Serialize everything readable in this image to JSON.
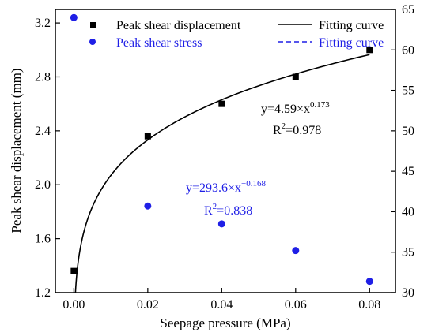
{
  "chart_data": {
    "type": "scatter",
    "xlabel": "Seepage pressure (MPa)",
    "ylabel_left": "Peak shear displacement (mm)",
    "ylabel_right": "",
    "x_ticks": [
      0.0,
      0.02,
      0.04,
      0.06,
      0.08
    ],
    "x_tick_labels": [
      "0.00",
      "0.02",
      "0.04",
      "0.06",
      "0.08"
    ],
    "xlim": [
      -0.005,
      0.087
    ],
    "y_left_ticks": [
      1.2,
      1.6,
      2.0,
      2.4,
      2.8,
      3.2
    ],
    "y_left_tick_labels": [
      "1.2",
      "1.6",
      "2.0",
      "2.4",
      "2.8",
      "3.2"
    ],
    "ylim_left": [
      1.2,
      3.3
    ],
    "y_right_ticks": [
      30,
      35,
      40,
      45,
      50,
      55,
      60,
      65
    ],
    "y_right_tick_labels": [
      "30",
      "35",
      "40",
      "45",
      "50",
      "55",
      "60",
      "65"
    ],
    "ylim_right": [
      30,
      65
    ],
    "series": [
      {
        "name": "Peak shear displacement",
        "axis": "left",
        "marker": "square",
        "color": "#000000",
        "x": [
          0.0,
          0.02,
          0.04,
          0.06,
          0.08
        ],
        "y": [
          1.36,
          2.36,
          2.6,
          2.8,
          3.0
        ]
      },
      {
        "name": "Peak shear stress",
        "axis": "right",
        "marker": "circle",
        "color": "#1f1fe6",
        "x": [
          0.0,
          0.02,
          0.04,
          0.06,
          0.08
        ],
        "y": [
          64.0,
          40.7,
          38.5,
          35.2,
          31.4
        ]
      }
    ],
    "fits": [
      {
        "name": "Fitting curve",
        "axis": "left",
        "style": "solid",
        "color": "#000000",
        "a": 4.59,
        "b": 0.173,
        "eq_prefix": "y=4.59×x",
        "eq_exp": "0.173",
        "r2_prefix": "R",
        "r2_sup": "2",
        "r2_value": "=0.978"
      },
      {
        "name": "Fitting curve",
        "axis": "right",
        "style": "dashed",
        "color": "#1f1fe6",
        "a": 293.6,
        "b": -0.168,
        "eq_prefix": "y=293.6×x",
        "eq_exp": "−0.168",
        "r2_prefix": "R",
        "r2_sup": "2",
        "r2_value": "=0.838"
      }
    ],
    "legend_placement": "top"
  }
}
